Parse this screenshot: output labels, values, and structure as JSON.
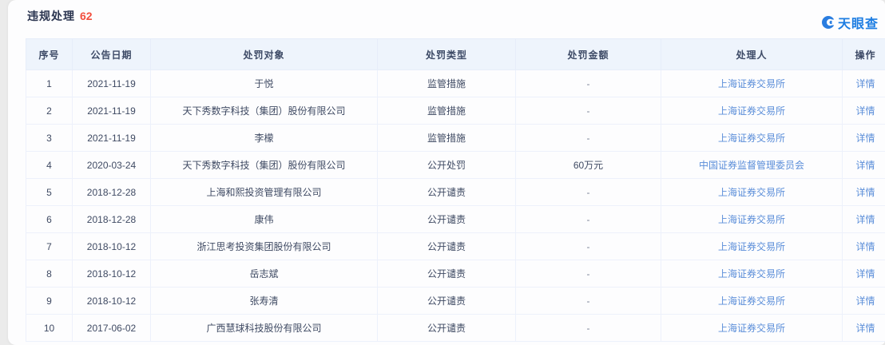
{
  "header": {
    "title": "违规处理",
    "count": "62"
  },
  "brand": {
    "name": "天眼查",
    "color": "#1d7de2"
  },
  "table": {
    "columns": [
      "序号",
      "公告日期",
      "处罚对象",
      "处罚类型",
      "处罚金额",
      "处理人",
      "操作"
    ],
    "detail_label": "详情",
    "rows": [
      {
        "no": "1",
        "date": "2021-11-19",
        "target": "于悦",
        "type": "监管措施",
        "amount": "-",
        "handler": "上海证券交易所"
      },
      {
        "no": "2",
        "date": "2021-11-19",
        "target": "天下秀数字科技（集团）股份有限公司",
        "type": "监管措施",
        "amount": "-",
        "handler": "上海证券交易所"
      },
      {
        "no": "3",
        "date": "2021-11-19",
        "target": "李檬",
        "type": "监管措施",
        "amount": "-",
        "handler": "上海证券交易所"
      },
      {
        "no": "4",
        "date": "2020-03-24",
        "target": "天下秀数字科技（集团）股份有限公司",
        "type": "公开处罚",
        "amount": "60万元",
        "handler": "中国证券监督管理委员会"
      },
      {
        "no": "5",
        "date": "2018-12-28",
        "target": "上海和熙投资管理有限公司",
        "type": "公开谴责",
        "amount": "-",
        "handler": "上海证券交易所"
      },
      {
        "no": "6",
        "date": "2018-12-28",
        "target": "康伟",
        "type": "公开谴责",
        "amount": "-",
        "handler": "上海证券交易所"
      },
      {
        "no": "7",
        "date": "2018-10-12",
        "target": "浙江思考投资集团股份有限公司",
        "type": "公开谴责",
        "amount": "-",
        "handler": "上海证券交易所"
      },
      {
        "no": "8",
        "date": "2018-10-12",
        "target": "岳志斌",
        "type": "公开谴责",
        "amount": "-",
        "handler": "上海证券交易所"
      },
      {
        "no": "9",
        "date": "2018-10-12",
        "target": "张寿清",
        "type": "公开谴责",
        "amount": "-",
        "handler": "上海证券交易所"
      },
      {
        "no": "10",
        "date": "2017-06-02",
        "target": "广西慧球科技股份有限公司",
        "type": "公开谴责",
        "amount": "-",
        "handler": "上海证券交易所"
      }
    ]
  },
  "colors": {
    "count_red": "#f24e3d",
    "link_blue": "#5b8ed9",
    "header_bg": "#eef4fc",
    "brand_blue": "#1d7de2"
  }
}
